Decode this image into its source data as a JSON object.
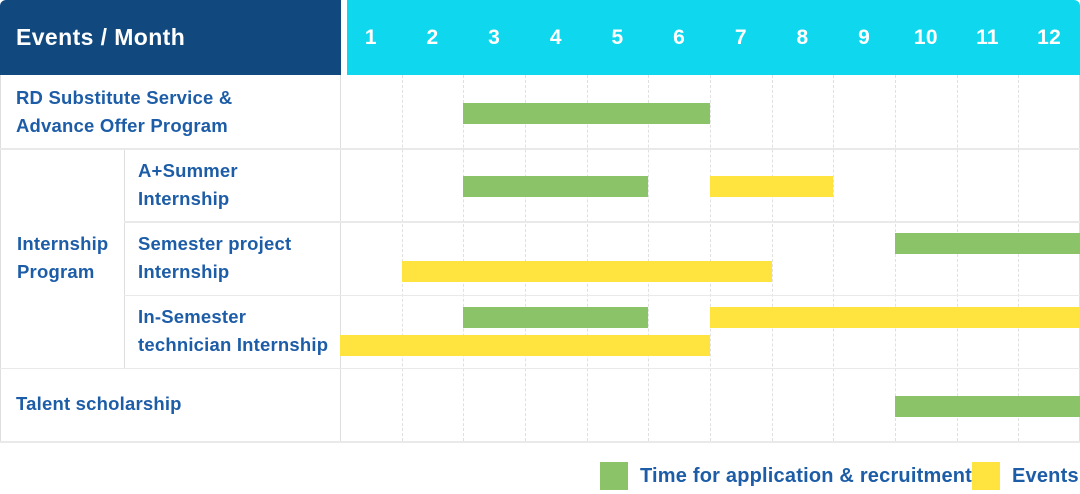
{
  "header": {
    "title": "Events / Month",
    "months": [
      "1",
      "2",
      "3",
      "4",
      "5",
      "6",
      "7",
      "8",
      "9",
      "10",
      "11",
      "12"
    ]
  },
  "colors": {
    "navy": "#11497e",
    "cyan": "#0fd7ee",
    "green": "#8bc369",
    "yellow": "#ffe33f",
    "label_blue": "#1d5da7"
  },
  "legend": {
    "items": [
      {
        "id": "recruitment",
        "label": "Time for application & recruitment",
        "color": "#8bc369"
      },
      {
        "id": "events",
        "label": "Events",
        "color": "#ffe33f"
      }
    ]
  },
  "row_groups": [
    {
      "label": "Internship Program",
      "label_lines": [
        "Internship",
        "Program"
      ],
      "start_row": 1,
      "end_row": 3
    }
  ],
  "chart_data": {
    "type": "bar",
    "subtype": "gantt-schedule",
    "title": "Events / Month",
    "x_axis": {
      "label": "Month",
      "ticks": [
        "1",
        "2",
        "3",
        "4",
        "5",
        "6",
        "7",
        "8",
        "9",
        "10",
        "11",
        "12"
      ],
      "range": [
        1,
        12
      ]
    },
    "legend_position": "bottom-right",
    "series": [
      {
        "id": "recruitment",
        "name": "Time for application & recruitment",
        "color": "#8bc369"
      },
      {
        "id": "events",
        "name": "Events",
        "color": "#ffe33f"
      }
    ],
    "rows": [
      {
        "group": "",
        "label": "RD Substitute Service & Advance Offer Program",
        "label_lines": [
          "RD Substitute Service &",
          "Advance Offer Program"
        ],
        "sub": false,
        "bars": [
          {
            "series": "recruitment",
            "start_month": 3,
            "end_month": 6,
            "lane": "center"
          }
        ]
      },
      {
        "group": "Internship Program",
        "label": "A+Summer Internship",
        "label_lines": [
          "A+Summer",
          "Internship"
        ],
        "sub": true,
        "bars": [
          {
            "series": "recruitment",
            "start_month": 3,
            "end_month": 5,
            "lane": "center"
          },
          {
            "series": "events",
            "start_month": 7,
            "end_month": 8,
            "lane": "center"
          }
        ]
      },
      {
        "group": "Internship Program",
        "label": "Semester project Internship",
        "label_lines": [
          "Semester project",
          "Internship"
        ],
        "sub": true,
        "bars": [
          {
            "series": "recruitment",
            "start_month": 10,
            "end_month": 12,
            "lane": "top"
          },
          {
            "series": "events",
            "start_month": 2,
            "end_month": 7,
            "lane": "bottom"
          }
        ]
      },
      {
        "group": "Internship Program",
        "label": "In-Semester technician Internship",
        "label_lines": [
          "In-Semester",
          "technician Internship"
        ],
        "sub": true,
        "bars": [
          {
            "series": "recruitment",
            "start_month": 3,
            "end_month": 5,
            "lane": "top"
          },
          {
            "series": "events",
            "start_month": 7,
            "end_month": 12,
            "lane": "top"
          },
          {
            "series": "events",
            "start_month": 1,
            "end_month": 6,
            "lane": "bottom"
          }
        ]
      },
      {
        "group": "",
        "label": "Talent scholarship",
        "label_lines": [
          "Talent scholarship"
        ],
        "sub": false,
        "bars": [
          {
            "series": "recruitment",
            "start_month": 10,
            "end_month": 12,
            "lane": "center"
          }
        ]
      }
    ]
  }
}
